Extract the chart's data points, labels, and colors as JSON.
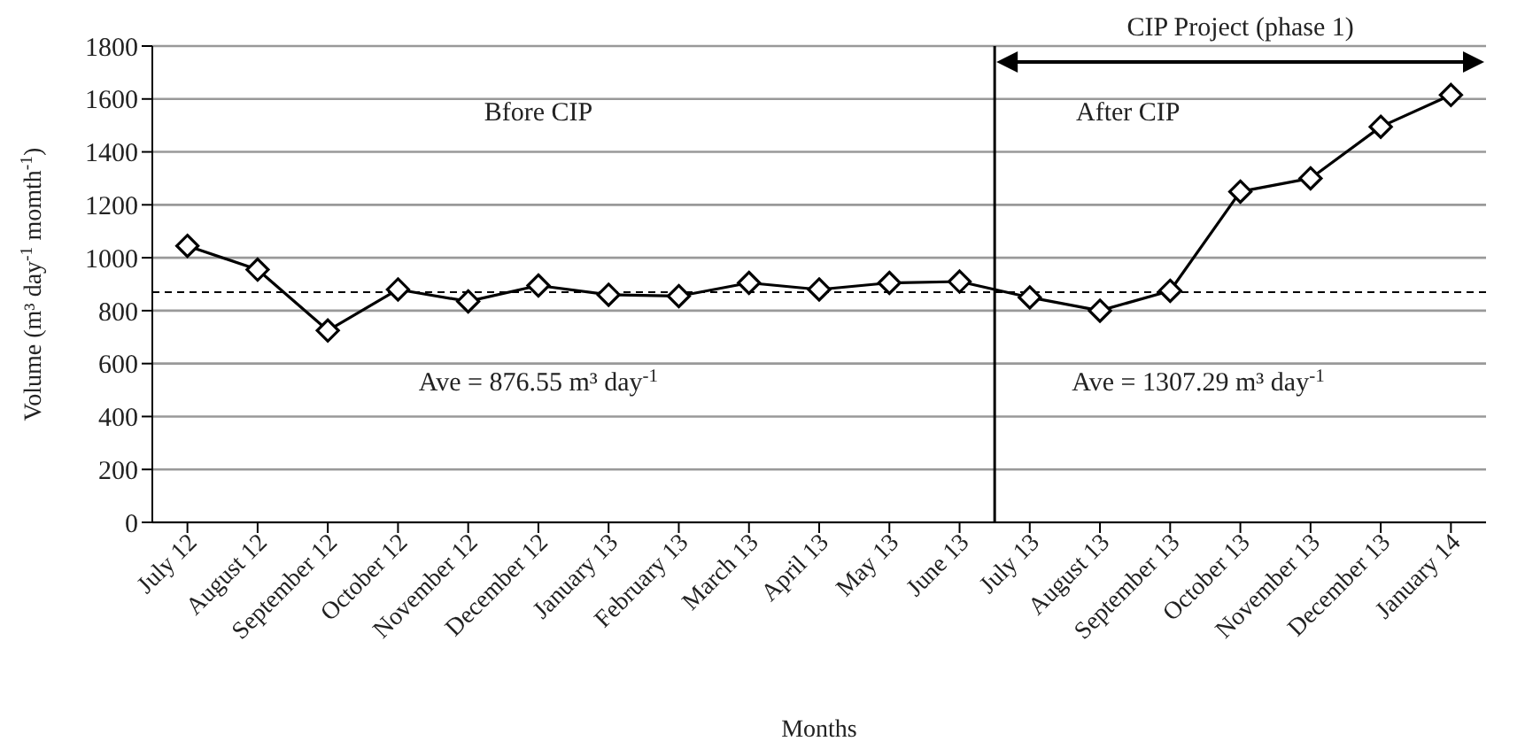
{
  "chart_data": {
    "type": "line",
    "xlabel": "Months",
    "ylabel": "Volume (m³ day$^{-1}$ momth$^{-1}$)",
    "categories": [
      "July 12",
      "August 12",
      "September 12",
      "October 12",
      "November 12",
      "December 12",
      "January 13",
      "February 13",
      "March 13",
      "April 13",
      "May 13",
      "June 13",
      "July 13",
      "August 13",
      "September 13",
      "October 13",
      "November 13",
      "December 13",
      "January 14"
    ],
    "series": [
      {
        "color": "#000000",
        "values": [
          1045,
          955,
          725,
          880,
          835,
          895,
          860,
          855,
          905,
          880,
          905,
          910,
          850,
          800,
          875,
          1250,
          1300,
          1495,
          1615
        ]
      }
    ],
    "ylim": [
      0,
      1800
    ],
    "yticks": [
      0,
      200,
      400,
      600,
      800,
      1000,
      1200,
      1400,
      1600,
      1800
    ],
    "grid": "y",
    "marker": "diamond",
    "line_style": "solid",
    "ref_lines": [
      {
        "axis": "y",
        "value": 870,
        "line_style": "dashed",
        "color": "#000000"
      },
      {
        "axis": "x",
        "value": "July 13",
        "line_style": "solid",
        "color": "#000000"
      }
    ],
    "annotations": [
      "Bfore CIP",
      "After CIP",
      "Ave = 876.55 m³ day$^{-1}$",
      "Ave = 1307.29 m³ day$^{-1}$",
      "CIP Project (phase 1)"
    ]
  }
}
